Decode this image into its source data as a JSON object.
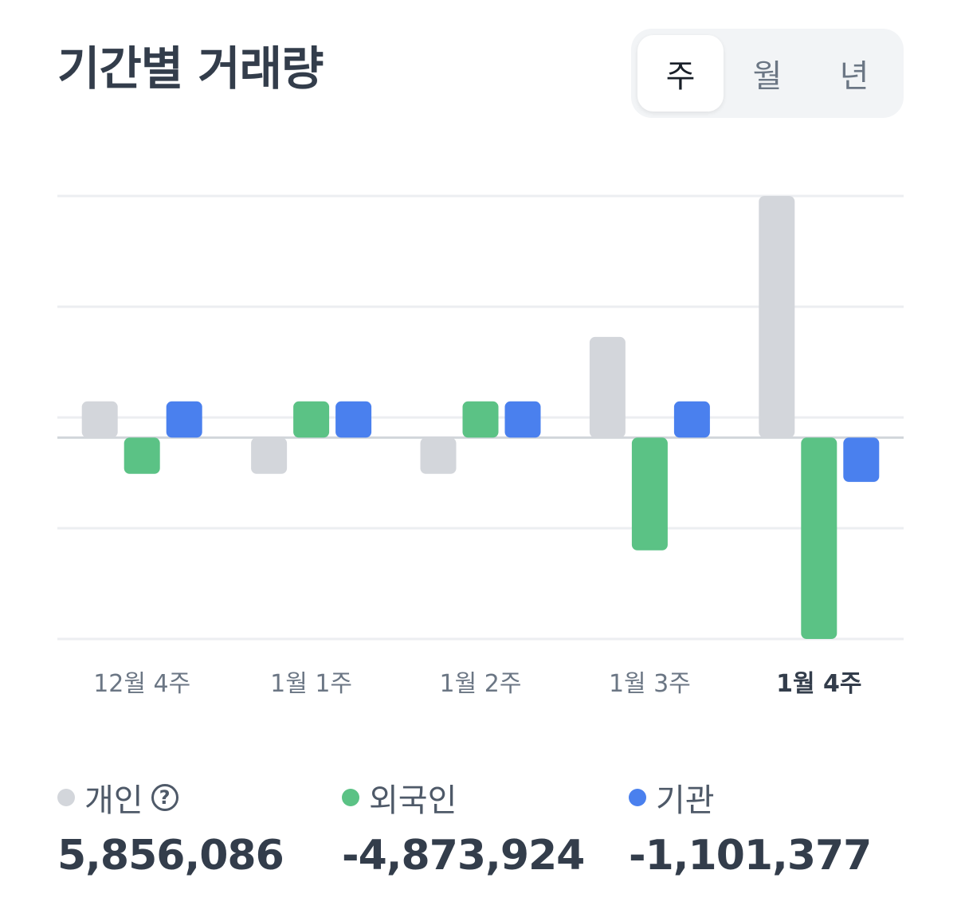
{
  "header": {
    "title": "기간별 거래량"
  },
  "period_tabs": [
    {
      "label": "주",
      "active": true
    },
    {
      "label": "월",
      "active": false
    },
    {
      "label": "년",
      "active": false
    }
  ],
  "colors": {
    "individual": "#d3d6db",
    "foreign": "#5bc285",
    "institution": "#4a80ee",
    "grid": "#eceef1",
    "baseline": "#d1d5da"
  },
  "chart_data": {
    "type": "bar",
    "categories": [
      "12월 4주",
      "1월 1주",
      "1월 2주",
      "1월 3주",
      "1월 4주"
    ],
    "highlighted_category": "1월 4주",
    "series": [
      {
        "name": "개인",
        "values": [
          0.9,
          -0.9,
          -0.9,
          2.5,
          6.0
        ]
      },
      {
        "name": "외국인",
        "values": [
          -0.9,
          0.9,
          0.9,
          -2.8,
          -5.0
        ]
      },
      {
        "name": "기관",
        "values": [
          0.9,
          0.9,
          0.9,
          0.9,
          -1.1
        ]
      }
    ],
    "ylim": [
      -5,
      6
    ],
    "gridlines": [
      -5,
      -2.25,
      0.5,
      3.25,
      6
    ],
    "grid": true,
    "xlabel": "",
    "ylabel": ""
  },
  "legend": [
    {
      "label": "개인",
      "value": "5,856,086",
      "has_help": true,
      "help_glyph": "?"
    },
    {
      "label": "외국인",
      "value": "-4,873,924",
      "has_help": false
    },
    {
      "label": "기관",
      "value": "-1,101,377",
      "has_help": false
    }
  ]
}
